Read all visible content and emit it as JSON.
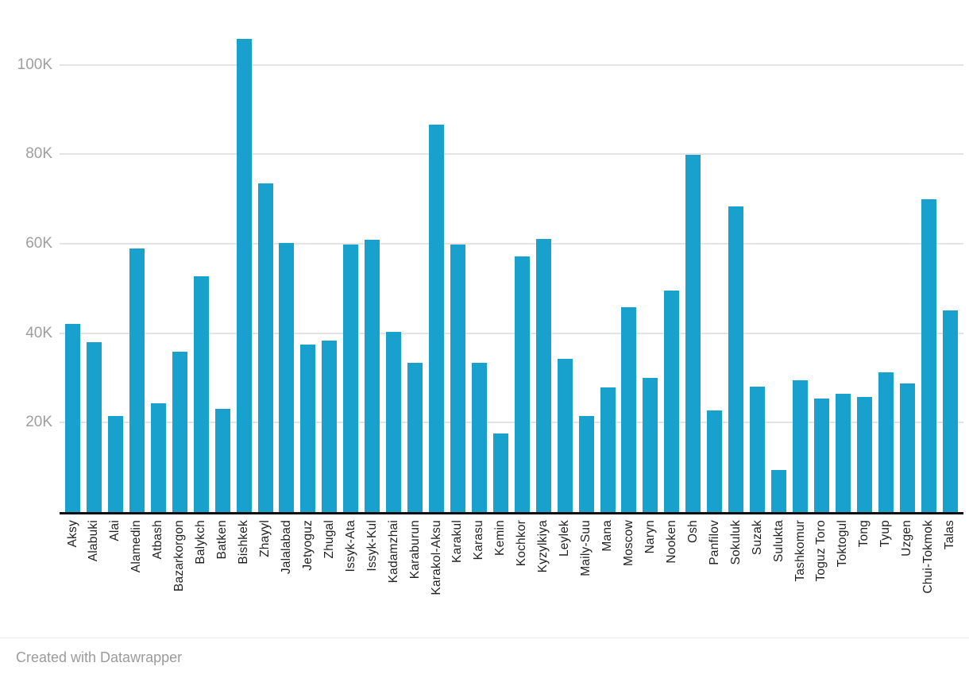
{
  "chart_data": {
    "type": "bar",
    "title": "",
    "xlabel": "",
    "ylabel": "",
    "grid": "horizontal",
    "legend": "none",
    "bar_color": "#18a1cc",
    "ylim": [
      0,
      110000
    ],
    "yticks": {
      "values": [
        20000,
        40000,
        60000,
        80000,
        100000
      ],
      "labels": [
        "20K",
        "40K",
        "60K",
        "80K",
        "100K"
      ]
    },
    "categories": [
      "Aksy",
      "Alabuki",
      "Alai",
      "Alamedin",
      "Atbash",
      "Bazarkorgon",
      "Balykch",
      "Batken",
      "Bishkek",
      "Zhayyl",
      "Jalalabad",
      "Jetyoguz",
      "Zhugal",
      "Issyk-Ata",
      "Issyk-Kul",
      "Kadamzhai",
      "Karaburun",
      "Karakol-Aksu",
      "Karakul",
      "Karasu",
      "Kemin",
      "Kochkor",
      "Kyzylkiya",
      "Leylek",
      "Maily-Suu",
      "Mana",
      "Moscow",
      "Naryn",
      "Nooken",
      "Osh",
      "Panfilov",
      "Sokuluk",
      "Suzak",
      "Sulukta",
      "Tashkomur",
      "Toguz Toro",
      "Toktogul",
      "Tong",
      "Tyup",
      "Uzgen",
      "Chui-Tokmok",
      "Talas"
    ],
    "values": [
      42100,
      38000,
      21500,
      59000,
      24400,
      35900,
      52800,
      23100,
      105800,
      73400,
      60100,
      37400,
      38400,
      59900,
      60900,
      40300,
      33300,
      86600,
      59800,
      33300,
      17600,
      57200,
      61000,
      34300,
      21500,
      27900,
      45800,
      30000,
      49600,
      79800,
      22800,
      68300,
      28100,
      9400,
      29400,
      25400,
      26500,
      25700,
      31200,
      28700,
      69900,
      45000
    ]
  },
  "colors": {
    "bar": "#18a1cc",
    "gridline": "#e4e4e4",
    "axis_line": "#0c0c0c",
    "ytick_text": "#9e9e9e",
    "xtick_text": "#222222",
    "footer_text": "#9b9b9b",
    "background": "#ffffff"
  },
  "footer": {
    "attribution": "Created with Datawrapper"
  }
}
